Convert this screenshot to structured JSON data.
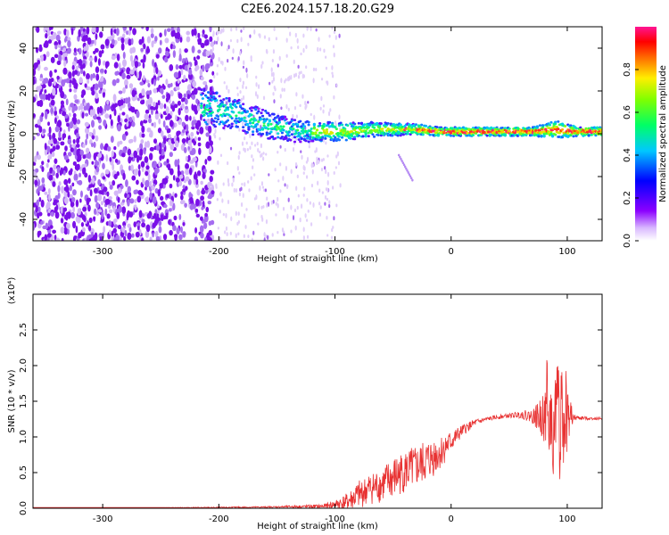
{
  "title": "C2E6.2024.157.18.20.G29",
  "colors": {
    "snr_line": "#e83232",
    "axis": "#000000",
    "spectrogram_dim": "#cba6f2",
    "spectrogram_core": "#7a10e8"
  },
  "chart_data": [
    {
      "type": "heatmap",
      "xlabel": "Height of straight line (km)",
      "ylabel": "Frequency (Hz)",
      "xlim": [
        -360,
        130
      ],
      "ylim": [
        -50,
        50
      ],
      "x_ticks": [
        -300,
        -200,
        -100,
        0,
        100
      ],
      "y_ticks": [
        -40,
        -20,
        0,
        20,
        40
      ],
      "x_tick_labels": [
        "-300",
        "-200",
        "-100",
        "0",
        "100"
      ],
      "y_tick_labels": [
        "-40",
        "-20",
        "0",
        "20",
        "40"
      ],
      "colorbar": {
        "label": "Normalized spectral amplitude",
        "range": [
          0,
          1
        ],
        "ticks": [
          0.0,
          0.2,
          0.4,
          0.6,
          0.8
        ],
        "tick_labels": [
          "0.0",
          "0.2",
          "0.4",
          "0.6",
          "0.8"
        ],
        "colormap": "rainbow"
      },
      "ridge_center_hz": [
        {
          "x": -210,
          "y": 12
        },
        {
          "x": -190,
          "y": 10
        },
        {
          "x": -170,
          "y": 6
        },
        {
          "x": -150,
          "y": 3
        },
        {
          "x": -130,
          "y": 1
        },
        {
          "x": -110,
          "y": 1
        },
        {
          "x": -90,
          "y": 1
        },
        {
          "x": -70,
          "y": 2
        },
        {
          "x": -50,
          "y": 2
        },
        {
          "x": -30,
          "y": 2
        },
        {
          "x": -10,
          "y": 1
        },
        {
          "x": 10,
          "y": 1
        },
        {
          "x": 30,
          "y": 1
        },
        {
          "x": 50,
          "y": 1
        },
        {
          "x": 70,
          "y": 1
        },
        {
          "x": 90,
          "y": 2
        },
        {
          "x": 110,
          "y": 1
        },
        {
          "x": 130,
          "y": 1
        }
      ],
      "ridge_halfwidth_hz": [
        {
          "x": -210,
          "y": 9
        },
        {
          "x": -170,
          "y": 7
        },
        {
          "x": -130,
          "y": 5
        },
        {
          "x": -90,
          "y": 4
        },
        {
          "x": -50,
          "y": 3
        },
        {
          "x": -10,
          "y": 2
        },
        {
          "x": 30,
          "y": 2
        },
        {
          "x": 70,
          "y": 2
        },
        {
          "x": 90,
          "y": 4
        },
        {
          "x": 110,
          "y": 2
        },
        {
          "x": 130,
          "y": 2
        }
      ]
    },
    {
      "type": "line",
      "xlabel": "Height of straight line (km)",
      "ylabel": "SNR (10 * v/v)",
      "y_multiplier_label": "(x10⁴)",
      "xlim": [
        -360,
        130
      ],
      "ylim": [
        0,
        3
      ],
      "x_ticks": [
        -300,
        -200,
        -100,
        0,
        100
      ],
      "y_ticks": [
        0.0,
        0.5,
        1.0,
        1.5,
        2.0,
        2.5
      ],
      "x_tick_labels": [
        "-300",
        "-200",
        "-100",
        "0",
        "100"
      ],
      "y_tick_labels": [
        "0.0",
        "0.5",
        "1.0",
        "1.5",
        "2.0",
        "2.5"
      ],
      "series": [
        {
          "x": [
            -360,
            -300,
            -250,
            -200,
            -150,
            -110,
            -100,
            -90,
            -80,
            -70,
            -60,
            -50,
            -40,
            -30,
            -20,
            -10,
            0,
            10,
            20,
            30,
            40,
            50,
            60,
            70,
            75,
            80,
            85,
            90,
            95,
            100,
            105,
            110,
            120,
            130
          ],
          "y": [
            0.01,
            0.01,
            0.01,
            0.01,
            0.02,
            0.03,
            0.06,
            0.1,
            0.2,
            0.3,
            0.35,
            0.45,
            0.55,
            0.6,
            0.7,
            0.8,
            0.95,
            1.1,
            1.2,
            1.25,
            1.28,
            1.3,
            1.32,
            1.3,
            1.3,
            1.3,
            1.25,
            1.2,
            1.4,
            1.35,
            1.27,
            1.27,
            1.26,
            1.26
          ],
          "noise": [
            0,
            0,
            0,
            0.01,
            0.01,
            0.03,
            0.06,
            0.12,
            0.2,
            0.22,
            0.25,
            0.3,
            0.3,
            0.3,
            0.3,
            0.25,
            0.15,
            0.08,
            0.05,
            0.03,
            0.03,
            0.03,
            0.05,
            0.1,
            0.2,
            0.4,
            0.6,
            0.8,
            0.9,
            0.5,
            0.05,
            0.03,
            0.02,
            0.02
          ]
        }
      ]
    }
  ]
}
